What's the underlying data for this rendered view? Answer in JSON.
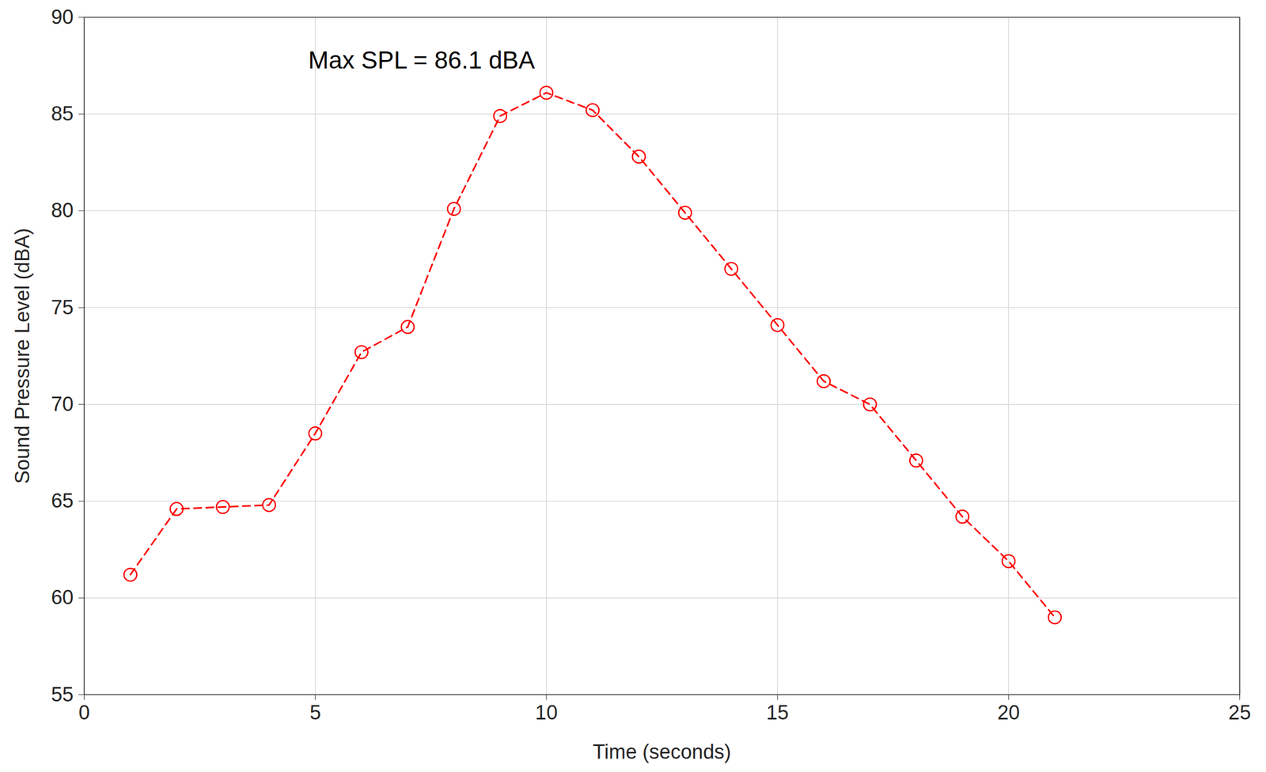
{
  "chart_data": {
    "type": "line",
    "annotation": "Max SPL = 86.1 dBA",
    "x_label": "Time (seconds)",
    "y_label": "Sound Pressure Level (dBA)",
    "x": [
      1,
      2,
      3,
      4,
      5,
      6,
      7,
      8,
      9,
      10,
      11,
      12,
      13,
      14,
      15,
      16,
      17,
      18,
      19,
      20,
      21
    ],
    "values": [
      61.2,
      64.6,
      64.7,
      64.8,
      68.5,
      72.7,
      74.0,
      80.1,
      84.9,
      86.1,
      85.2,
      82.8,
      79.9,
      77.0,
      74.1,
      71.2,
      70.0,
      67.1,
      64.2,
      61.9,
      59.0
    ],
    "color": "#ff0000",
    "marker": "circle",
    "line_style": "dashed",
    "xlim": [
      0,
      25
    ],
    "xticks": [
      0,
      5,
      10,
      15,
      20,
      25
    ],
    "ylim": [
      55,
      90
    ],
    "yticks": [
      55,
      60,
      65,
      70,
      75,
      80,
      85,
      90
    ],
    "grid": true
  }
}
